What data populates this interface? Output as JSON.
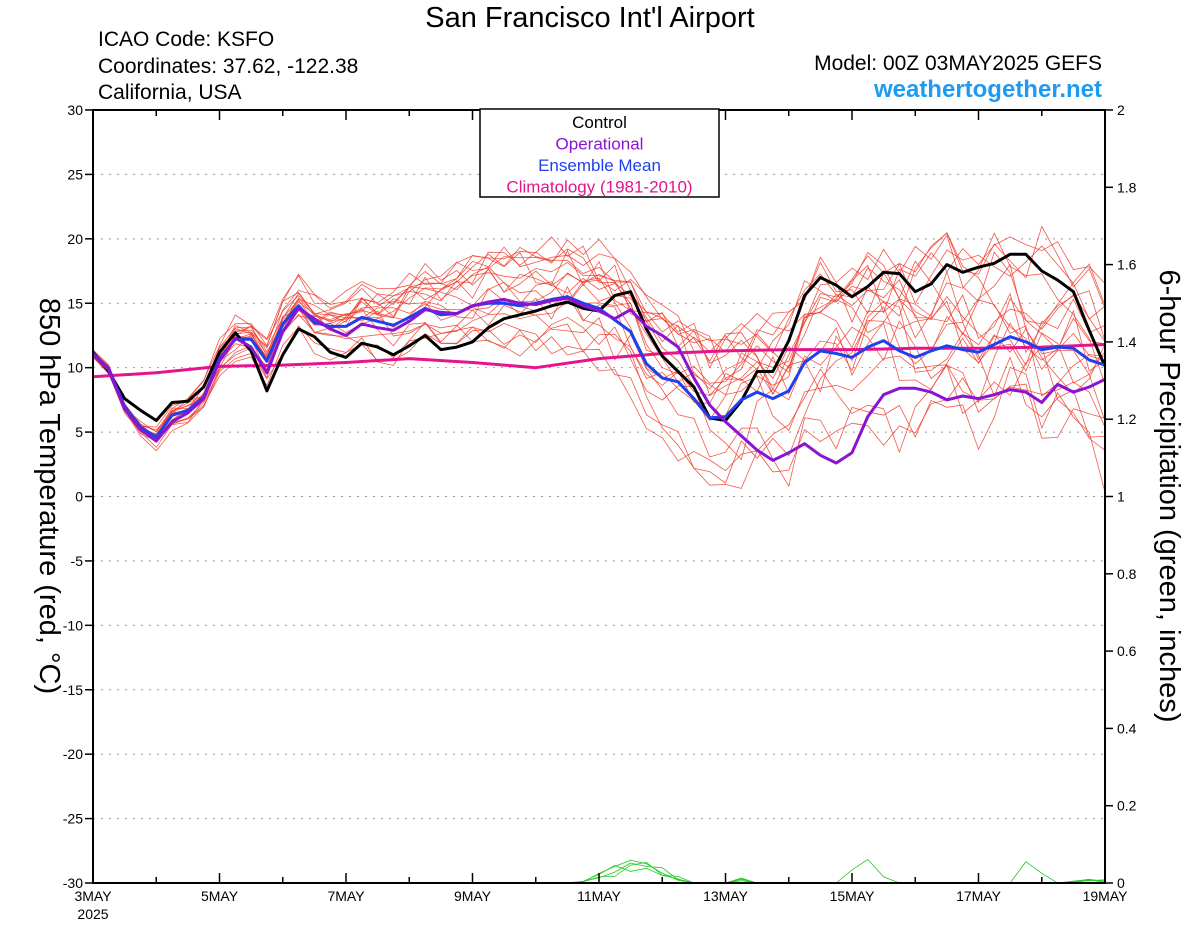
{
  "header": {
    "title": "San Francisco Int'l Airport",
    "icao": "ICAO Code: KSFO",
    "coordinates": "Coordinates: 37.62, -122.38",
    "region": "California, USA",
    "model": "Model: 00Z 03MAY2025 GEFS",
    "site": "weathertogether.net"
  },
  "legend": {
    "items": [
      {
        "label": "Control",
        "color": "#000000"
      },
      {
        "label": "Operational",
        "color": "#8a14d2"
      },
      {
        "label": "Ensemble Mean",
        "color": "#2040ee"
      },
      {
        "label": "Climatology (1981-2010)",
        "color": "#e6148c"
      }
    ]
  },
  "chart_data": {
    "type": "line",
    "ylabel_left": "850 hPa Temperature (red, °C)",
    "ylabel_right": "6-hour Precipitation (green, inches)",
    "x_range_days": [
      0,
      16
    ],
    "x_ticks": [
      {
        "day": 0,
        "label": "3MAY",
        "sub": "2025"
      },
      {
        "day": 2,
        "label": "5MAY"
      },
      {
        "day": 4,
        "label": "7MAY"
      },
      {
        "day": 6,
        "label": "9MAY"
      },
      {
        "day": 8,
        "label": "11MAY"
      },
      {
        "day": 10,
        "label": "13MAY"
      },
      {
        "day": 12,
        "label": "15MAY"
      },
      {
        "day": 14,
        "label": "17MAY"
      },
      {
        "day": 16,
        "label": "19MAY"
      }
    ],
    "y_left": {
      "min": -30,
      "max": 30,
      "ticks": [
        30,
        25,
        20,
        15,
        10,
        5,
        0,
        -5,
        -10,
        -15,
        -20,
        -25,
        -30
      ]
    },
    "y_right": {
      "min": 0,
      "max": 2,
      "ticks": [
        2,
        1.8,
        1.6,
        1.4,
        1.2,
        1,
        0.8,
        0.6,
        0.4,
        0.2,
        0
      ]
    },
    "grid": true,
    "series": [
      {
        "name": "Control",
        "color": "#000000",
        "x": [
          0,
          0.25,
          0.5,
          0.75,
          1,
          1.25,
          1.5,
          1.75,
          2,
          2.25,
          2.5,
          2.75,
          3,
          3.25,
          3.5,
          3.75,
          4,
          4.25,
          4.5,
          4.75,
          5,
          5.25,
          5.5,
          5.75,
          6,
          6.25,
          6.5,
          6.75,
          7,
          7.25,
          7.5,
          7.75,
          8,
          8.25,
          8.5,
          8.75,
          9,
          9.25,
          9.5,
          9.75,
          10,
          10.25,
          10.5,
          10.75,
          11,
          11.25,
          11.5,
          11.75,
          12,
          12.25,
          12.5,
          12.75,
          13,
          13.25,
          13.5,
          13.75,
          14,
          14.25,
          14.5,
          14.75,
          15,
          15.25,
          15.5,
          15.75,
          16
        ],
        "y": [
          11.2,
          9.7,
          7.6,
          6.7,
          5.9,
          7.3,
          7.4,
          8.5,
          11.2,
          12.7,
          11.3,
          8.2,
          11,
          13,
          12.4,
          11.2,
          10.8,
          11.9,
          11.6,
          11,
          11.7,
          12.5,
          11.4,
          11.6,
          12,
          13.1,
          13.8,
          14.1,
          14.4,
          14.8,
          15.1,
          14.6,
          14.4,
          15.6,
          15.9,
          13,
          10.9,
          9.7,
          8.5,
          6.1,
          5.9,
          7.4,
          9.7,
          9.7,
          12.1,
          15.6,
          17,
          16.4,
          15.5,
          16.3,
          17.4,
          17.3,
          15.9,
          16.5,
          18,
          17.4,
          17.8,
          18.1,
          18.8,
          18.8,
          17.5,
          16.8,
          15.9,
          12.9,
          10.1
        ]
      },
      {
        "name": "Operational",
        "color": "#8a14d2",
        "x": [
          0,
          0.25,
          0.5,
          0.75,
          1,
          1.25,
          1.5,
          1.75,
          2,
          2.25,
          2.5,
          2.75,
          3,
          3.25,
          3.5,
          3.75,
          4,
          4.25,
          4.5,
          4.75,
          5,
          5.25,
          5.5,
          5.75,
          6,
          6.25,
          6.5,
          6.75,
          7,
          7.25,
          7.5,
          7.75,
          8,
          8.25,
          8.5,
          8.75,
          9,
          9.25,
          9.5,
          9.75,
          10,
          10.25,
          10.5,
          10.75,
          11,
          11.25,
          11.5,
          11.75,
          12,
          12.25,
          12.5,
          12.75,
          13,
          13.25,
          13.5,
          13.75,
          14,
          14.25,
          14.5,
          14.75,
          15,
          15.25,
          15.5,
          15.75,
          16
        ],
        "y": [
          11,
          9.8,
          6.8,
          5.2,
          4.3,
          5.8,
          6.5,
          7.6,
          10.5,
          12.3,
          11.6,
          9.6,
          12.8,
          14.6,
          13.8,
          13,
          12.5,
          13.4,
          13.1,
          12.9,
          13.6,
          14.5,
          14.3,
          14.2,
          14.8,
          15.1,
          15.3,
          15,
          14.9,
          15.2,
          15.4,
          14.8,
          14.4,
          13.8,
          14.5,
          13.2,
          12.5,
          11.6,
          9.2,
          7.1,
          5.8,
          4.7,
          3.6,
          2.8,
          3.4,
          4.1,
          3.2,
          2.6,
          3.4,
          6.2,
          7.9,
          8.4,
          8.4,
          8.1,
          7.5,
          7.8,
          7.6,
          7.9,
          8.3,
          8.1,
          7.3,
          8.7,
          8.1,
          8.5,
          9.1
        ]
      },
      {
        "name": "Ensemble Mean",
        "color": "#2040ee",
        "x": [
          0,
          0.25,
          0.5,
          0.75,
          1,
          1.25,
          1.5,
          1.75,
          2,
          2.25,
          2.5,
          2.75,
          3,
          3.25,
          3.5,
          3.75,
          4,
          4.25,
          4.5,
          4.75,
          5,
          5.25,
          5.5,
          5.75,
          6,
          6.25,
          6.5,
          6.75,
          7,
          7.25,
          7.5,
          7.75,
          8,
          8.25,
          8.5,
          8.75,
          9,
          9.25,
          9.5,
          9.75,
          10,
          10.25,
          10.5,
          10.75,
          11,
          11.25,
          11.5,
          11.75,
          12,
          12.25,
          12.5,
          12.75,
          13,
          13.25,
          13.5,
          13.75,
          14,
          14.25,
          14.5,
          14.75,
          15,
          15.25,
          15.5,
          15.75,
          16
        ],
        "y": [
          11.1,
          9.9,
          7,
          5.4,
          4.6,
          6.3,
          6.7,
          7.7,
          10.7,
          12.2,
          12.2,
          10.5,
          13.4,
          14.8,
          13.5,
          13.2,
          13.2,
          13.9,
          13.6,
          13.3,
          13.9,
          14.6,
          14.1,
          14.2,
          14.8,
          15,
          15,
          14.8,
          15,
          15.3,
          15.5,
          15,
          14.6,
          13.7,
          12.8,
          10.3,
          9.2,
          8.9,
          7.6,
          6.1,
          6.2,
          7.5,
          8.1,
          7.6,
          8.2,
          10.4,
          11.3,
          11.1,
          10.8,
          11.6,
          12.1,
          11.3,
          10.8,
          11.3,
          11.7,
          11.4,
          11.2,
          11.8,
          12.4,
          12,
          11.4,
          11.6,
          11.5,
          10.6,
          10.2
        ]
      },
      {
        "name": "Climatology (1981-2010)",
        "color": "#e6148c",
        "x": [
          0,
          1,
          2,
          3,
          4,
          5,
          6,
          7,
          8,
          9,
          10,
          11,
          12,
          13,
          14,
          15,
          16
        ],
        "y": [
          9.3,
          9.6,
          10.1,
          10.2,
          10.4,
          10.7,
          10.4,
          10,
          10.7,
          11.1,
          11.3,
          11.4,
          11.4,
          11.5,
          11.5,
          11.6,
          11.8
        ]
      }
    ],
    "precipitation": {
      "color": "#22cc22",
      "note_units": "inches"
    }
  }
}
